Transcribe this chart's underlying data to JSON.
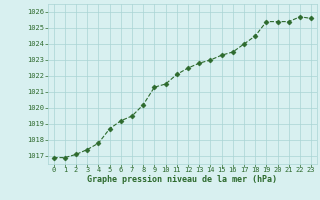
{
  "x": [
    0,
    1,
    2,
    3,
    4,
    5,
    6,
    7,
    8,
    9,
    10,
    11,
    12,
    13,
    14,
    15,
    16,
    17,
    18,
    19,
    20,
    21,
    22,
    23
  ],
  "y": [
    1016.9,
    1016.9,
    1017.1,
    1017.4,
    1017.8,
    1018.7,
    1019.2,
    1019.5,
    1020.2,
    1021.3,
    1021.5,
    1022.1,
    1022.5,
    1022.8,
    1023.0,
    1023.3,
    1023.5,
    1024.0,
    1024.5,
    1025.4,
    1025.4,
    1025.4,
    1025.7,
    1025.6
  ],
  "line_color": "#2d6a2d",
  "marker": "D",
  "marker_size": 2.5,
  "bg_color": "#d8f0f0",
  "grid_color": "#aad4d4",
  "xlabel": "Graphe pression niveau de la mer (hPa)",
  "xlabel_color": "#2d6a2d",
  "tick_color": "#2d6a2d",
  "ylim_min": 1016.5,
  "ylim_max": 1026.5,
  "yticks": [
    1017,
    1018,
    1019,
    1020,
    1021,
    1022,
    1023,
    1024,
    1025,
    1026
  ],
  "xticks": [
    0,
    1,
    2,
    3,
    4,
    5,
    6,
    7,
    8,
    9,
    10,
    11,
    12,
    13,
    14,
    15,
    16,
    17,
    18,
    19,
    20,
    21,
    22,
    23
  ],
  "fig_bg_color": "#d8f0f0",
  "tick_fontsize": 5.0,
  "xlabel_fontsize": 6.0,
  "linewidth": 0.8
}
